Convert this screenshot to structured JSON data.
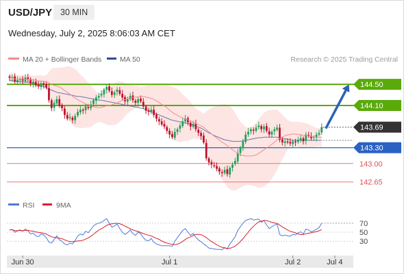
{
  "header": {
    "symbol": "USD/JPY",
    "timeframe": "30 MIN",
    "datetime": "Wednesday, July 2, 2025 8:06:03 AM CET"
  },
  "legend": {
    "ma20_label": "MA 20 + Bollinger Bands",
    "ma50_label": "MA 50",
    "credit": "Research © 2025 Trading Central",
    "rsi_label": "RSI",
    "rsi_ma_label": "9MA"
  },
  "colors": {
    "candle_up": "#22a05a",
    "candle_down": "#c0122c",
    "ma20": "#f28b8b",
    "ma50": "#4a64a8",
    "bollinger_fill": "#fde0de",
    "resistance": "#5aaa0a",
    "support": "#2a62c4",
    "pivot_low": "#e05050",
    "current_price": "#333333",
    "forecast_arrow": "#2a62b8",
    "rsi_line": "#4a7ad8",
    "rsi_ma_line": "#d6202a",
    "x_axis_band": "#e9e9e9"
  },
  "chart_data": {
    "type": "candlestick",
    "ylim": [
      142.4,
      144.8
    ],
    "levels": [
      {
        "kind": "resistance",
        "value": 144.5,
        "label": "144.50"
      },
      {
        "kind": "resistance",
        "value": 144.1,
        "label": "144.10"
      },
      {
        "kind": "current",
        "value": 143.69,
        "label": "143.69"
      },
      {
        "kind": "support",
        "value": 143.3,
        "label": "143.30"
      },
      {
        "kind": "target",
        "value": 143.0,
        "label": "143.00"
      },
      {
        "kind": "target",
        "value": 142.65,
        "label": "142.65"
      }
    ],
    "forecast": {
      "from": 143.69,
      "to": 144.5,
      "direction": "up"
    },
    "x_ticks": [
      {
        "index": 5,
        "label": "Jun 30"
      },
      {
        "index": 61,
        "label": "Jul 1"
      },
      {
        "index": 108,
        "label": "Jul 2"
      },
      {
        "index": 124,
        "label": "Jul 4"
      }
    ],
    "closes": [
      144.62,
      144.64,
      144.55,
      144.58,
      144.6,
      144.57,
      144.63,
      144.59,
      144.52,
      144.55,
      144.48,
      144.46,
      144.52,
      144.49,
      144.44,
      144.2,
      144.05,
      144.15,
      144.22,
      144.1,
      144.05,
      143.92,
      143.85,
      143.88,
      143.82,
      143.9,
      143.98,
      144.02,
      144.0,
      144.08,
      144.05,
      144.12,
      144.2,
      144.25,
      144.28,
      144.32,
      144.4,
      144.45,
      144.38,
      144.3,
      144.35,
      144.4,
      144.32,
      144.25,
      144.18,
      144.22,
      144.28,
      144.2,
      144.15,
      144.22,
      144.18,
      144.08,
      144.0,
      143.98,
      144.02,
      143.92,
      143.85,
      143.8,
      143.74,
      143.7,
      143.62,
      143.55,
      143.5,
      143.6,
      143.65,
      143.72,
      143.8,
      143.85,
      143.78,
      143.7,
      143.75,
      143.65,
      143.58,
      143.52,
      143.4,
      143.1,
      143.02,
      142.98,
      142.95,
      142.9,
      142.85,
      142.82,
      142.88,
      142.8,
      142.92,
      142.98,
      143.05,
      143.2,
      143.3,
      143.42,
      143.55,
      143.6,
      143.65,
      143.62,
      143.68,
      143.72,
      143.65,
      143.7,
      143.62,
      143.55,
      143.6,
      143.65,
      143.68,
      143.45,
      143.4,
      143.42,
      143.4,
      143.38,
      143.42,
      143.4,
      143.45,
      143.48,
      143.42,
      143.55,
      143.52,
      143.48,
      143.5,
      143.55,
      143.58,
      143.69
    ],
    "ma50": [
      144.58,
      144.57,
      144.56,
      144.56,
      144.55,
      144.55,
      144.54,
      144.54,
      144.53,
      144.52,
      144.51,
      144.49,
      144.48,
      144.46,
      144.44,
      144.41,
      144.39,
      144.37,
      144.35,
      144.34,
      144.33,
      144.32,
      144.31,
      144.3,
      144.29,
      144.28,
      144.27,
      144.27,
      144.26,
      144.25,
      144.24,
      144.23,
      144.22,
      144.21,
      144.2,
      144.2,
      144.19,
      144.18,
      144.17,
      144.16,
      144.15,
      144.14,
      144.13,
      144.12,
      144.11,
      144.1,
      144.09,
      144.08,
      144.07,
      144.06,
      144.05,
      144.04,
      144.02,
      144.0,
      143.98,
      143.96,
      143.94,
      143.92,
      143.9,
      143.88,
      143.86,
      143.84,
      143.82,
      143.81,
      143.8,
      143.79,
      143.78,
      143.77,
      143.76,
      143.75,
      143.73,
      143.71,
      143.69,
      143.67,
      143.64,
      143.61,
      143.58,
      143.56,
      143.53,
      143.51,
      143.49,
      143.47,
      143.45,
      143.44,
      143.43,
      143.42,
      143.42,
      143.42,
      143.42,
      143.43,
      143.44,
      143.45,
      143.46,
      143.47,
      143.48,
      143.49,
      143.49,
      143.5,
      143.5,
      143.5,
      143.5,
      143.5,
      143.5,
      143.49,
      143.48,
      143.47,
      143.46,
      143.45,
      143.44,
      143.44,
      143.44,
      143.44,
      143.44,
      143.44,
      143.44,
      143.44,
      143.44,
      143.44,
      143.44,
      143.44
    ],
    "rsi": [
      55,
      56,
      50,
      53,
      55,
      52,
      57,
      53,
      46,
      48,
      42,
      40,
      46,
      44,
      38,
      28,
      26,
      34,
      42,
      33,
      30,
      24,
      22,
      26,
      24,
      32,
      42,
      46,
      44,
      52,
      49,
      56,
      64,
      68,
      70,
      72,
      76,
      80,
      70,
      61,
      64,
      68,
      58,
      50,
      45,
      49,
      55,
      47,
      43,
      50,
      46,
      38,
      32,
      31,
      36,
      28,
      24,
      22,
      20,
      20,
      20,
      20,
      19,
      30,
      38,
      46,
      54,
      58,
      50,
      43,
      47,
      39,
      33,
      29,
      24,
      20,
      15,
      14,
      13,
      12,
      12,
      11,
      16,
      13,
      24,
      32,
      40,
      54,
      62,
      70,
      76,
      78,
      80,
      77,
      78,
      79,
      72,
      76,
      66,
      58,
      62,
      66,
      68,
      45,
      42,
      44,
      42,
      41,
      45,
      44,
      48,
      51,
      46,
      57,
      55,
      51,
      53,
      57,
      60,
      70
    ],
    "rsi_ylim": [
      0,
      100
    ],
    "rsi_ticks": [
      30,
      50,
      70
    ]
  }
}
